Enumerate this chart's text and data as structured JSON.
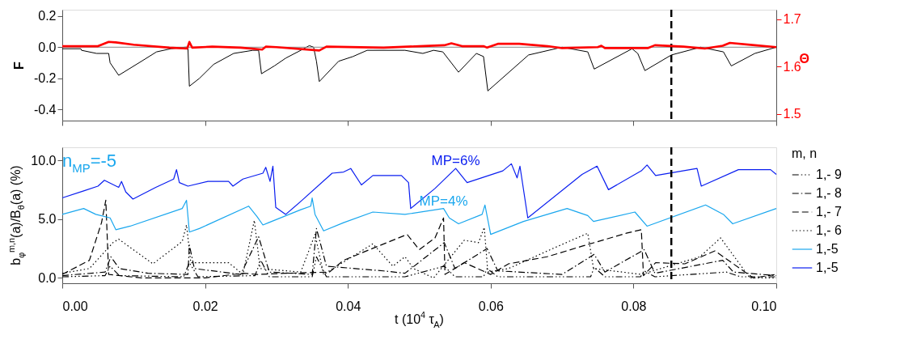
{
  "chart_data": [
    {
      "type": "line",
      "ylabel": "F",
      "y2label": "Θ",
      "tick_labels": "y",
      "grid": false,
      "legend": false,
      "xlim": [
        0,
        0.1
      ],
      "xticks": [
        {
          "value": 0,
          "label": null
        },
        {
          "value": 0.02,
          "label": null
        },
        {
          "value": 0.04,
          "label": null
        },
        {
          "value": 0.06,
          "label": null
        },
        {
          "value": 0.08,
          "label": null
        },
        {
          "value": 0.1,
          "label": null
        }
      ],
      "ylim": [
        -0.47,
        0.24
      ],
      "yticks": [
        {
          "value": 0.2,
          "label": "0.2"
        },
        {
          "value": 0,
          "label": "0.0"
        },
        {
          "value": -0.2,
          "label": "-0.2"
        },
        {
          "value": -0.4,
          "label": "-0.4"
        }
      ],
      "y2lim": [
        1.486,
        1.72
      ],
      "y2ticks": [
        1.5,
        1.6,
        1.7
      ],
      "ref_lines": [
        {
          "axis": "y",
          "value": 0,
          "color": "#888888",
          "line_style": "solid"
        },
        {
          "axis": "x",
          "value": 0.0853,
          "color": "#000000",
          "line_style": "dashed"
        }
      ],
      "series": [
        {
          "color": "#000000",
          "axis": "y",
          "line_style": "solid",
          "x": [
            0,
            0.0026,
            0.0027,
            0.0048,
            0.0065,
            0.0067,
            0.0079,
            0.0111,
            0.0132,
            0.0152,
            0.0172,
            0.0176,
            0.0178,
            0.0192,
            0.0212,
            0.024,
            0.0267,
            0.0275,
            0.0279,
            0.0297,
            0.0313,
            0.0334,
            0.0346,
            0.0352,
            0.0356,
            0.036,
            0.0387,
            0.0407,
            0.0427,
            0.048,
            0.0505,
            0.052,
            0.0533,
            0.0555,
            0.058,
            0.059,
            0.0596,
            0.0653,
            0.07,
            0.0736,
            0.0745,
            0.0798,
            0.0806,
            0.0816,
            0.0853,
            0.0894,
            0.0926,
            0.0937,
            0.097,
            0.1
          ],
          "values": [
            -0.01,
            -0.01,
            -0.02,
            -0.04,
            -0.04,
            -0.1,
            -0.18,
            -0.09,
            -0.03,
            -0.01,
            0.0,
            0.0,
            -0.25,
            -0.2,
            -0.11,
            -0.04,
            -0.02,
            -0.02,
            -0.17,
            -0.12,
            -0.07,
            -0.02,
            0.01,
            0.0,
            -0.09,
            -0.22,
            -0.09,
            -0.06,
            -0.02,
            -0.02,
            -0.04,
            -0.02,
            -0.03,
            -0.16,
            -0.04,
            -0.06,
            -0.28,
            -0.05,
            0.0,
            -0.03,
            -0.14,
            -0.01,
            -0.04,
            -0.15,
            -0.05,
            0.0,
            -0.03,
            -0.12,
            -0.04,
            0.0
          ]
        },
        {
          "color": "#ff0000",
          "axis": "y2",
          "line_style": "solid",
          "x": [
            0,
            0.005,
            0.0065,
            0.0075,
            0.01,
            0.015,
            0.0175,
            0.0178,
            0.0182,
            0.021,
            0.025,
            0.028,
            0.0285,
            0.03,
            0.036,
            0.037,
            0.045,
            0.05,
            0.0535,
            0.0545,
            0.056,
            0.059,
            0.0595,
            0.061,
            0.064,
            0.068,
            0.07,
            0.075,
            0.0755,
            0.076,
            0.082,
            0.083,
            0.087,
            0.09,
            0.0925,
            0.0935,
            0.097,
            0.1
          ],
          "values": [
            1.643,
            1.643,
            1.652,
            1.651,
            1.646,
            1.64,
            1.638,
            1.652,
            1.64,
            1.642,
            1.64,
            1.636,
            1.642,
            1.641,
            1.634,
            1.642,
            1.64,
            1.643,
            1.645,
            1.649,
            1.643,
            1.643,
            1.64,
            1.648,
            1.648,
            1.643,
            1.639,
            1.641,
            1.644,
            1.639,
            1.639,
            1.645,
            1.642,
            1.638,
            1.644,
            1.65,
            1.645,
            1.641
          ]
        }
      ]
    },
    {
      "type": "line",
      "xlabel": "t (10$^{4}$ τ$_{A}$)",
      "ylabel": "b$_{φ}$$^{m,n}$(a)/B$_{θ}$(a) (%)",
      "legend_title": "m, n",
      "legend": "right",
      "grid": false,
      "xlim": [
        0,
        0.1
      ],
      "xticks": [
        {
          "value": 0,
          "label": "0.00"
        },
        {
          "value": 0.02,
          "label": "0.02"
        },
        {
          "value": 0.04,
          "label": "0.04"
        },
        {
          "value": 0.06,
          "label": "0.06"
        },
        {
          "value": 0.08,
          "label": "0.08"
        },
        {
          "value": 0.1,
          "label": "0.10"
        }
      ],
      "ylim": [
        -0.45,
        11.1
      ],
      "yticks": [
        {
          "value": 0,
          "label": "0.0"
        },
        {
          "value": 5,
          "label": "5.0"
        },
        {
          "value": 10,
          "label": "10.0"
        }
      ],
      "ref_lines": [
        {
          "axis": "x",
          "value": 0.0853,
          "color": "#000000",
          "line_style": "dashed"
        }
      ],
      "annotations": [
        "n$_{MP}$=-5",
        {
          "text": "MP=6%",
          "x": 0.0551,
          "y": 9.3
        },
        {
          "text": "MP=4%",
          "x": 0.0534,
          "y": 5.9
        }
      ],
      "series": [
        {
          "name": "1,- 9",
          "color": "#000000",
          "line_style": "dashdotdot",
          "x": [
            0,
            0.006,
            0.0067,
            0.008,
            0.017,
            0.0178,
            0.019,
            0.027,
            0.0278,
            0.029,
            0.035,
            0.0356,
            0.037,
            0.048,
            0.0535,
            0.055,
            0.059,
            0.0595,
            0.061,
            0.074,
            0.0745,
            0.076,
            0.081,
            0.0815,
            0.083,
            0.093,
            0.095,
            0.1
          ],
          "values": [
            0.1,
            0.2,
            1.0,
            0.2,
            0.1,
            1.3,
            0.1,
            0.2,
            1.5,
            0.1,
            0.1,
            1.8,
            0.1,
            0.1,
            1.0,
            0.1,
            0.1,
            0.8,
            0.1,
            0.1,
            0.9,
            0.1,
            0.1,
            0.6,
            0.1,
            0.5,
            0.1,
            0.1
          ]
        },
        {
          "name": "1,- 8",
          "color": "#000000",
          "line_style": "dashdot",
          "x": [
            0,
            0.006,
            0.0068,
            0.008,
            0.012,
            0.0176,
            0.0178,
            0.0185,
            0.025,
            0.0275,
            0.029,
            0.035,
            0.0356,
            0.037,
            0.045,
            0.048,
            0.0535,
            0.055,
            0.0595,
            0.061,
            0.07,
            0.0745,
            0.076,
            0.0815,
            0.083,
            0.0925,
            0.094,
            0.1
          ],
          "values": [
            0.2,
            0.5,
            1.8,
            0.8,
            0.4,
            0.3,
            2.8,
            0.8,
            0.3,
            3.5,
            0.5,
            0.3,
            4.2,
            1.0,
            0.6,
            0.4,
            3.0,
            0.8,
            2.5,
            0.6,
            0.3,
            2.0,
            0.5,
            2.4,
            0.4,
            1.5,
            0.5,
            0.2
          ]
        },
        {
          "name": "1,- 7",
          "color": "#000000",
          "line_style": "dashed",
          "x": [
            0,
            0.0038,
            0.0055,
            0.0061,
            0.0065,
            0.0111,
            0.02,
            0.0253,
            0.0273,
            0.0313,
            0.0374,
            0.0394,
            0.0406,
            0.0483,
            0.05,
            0.0522,
            0.0534,
            0.0536,
            0.0563,
            0.06,
            0.0625,
            0.0679,
            0.0728,
            0.079,
            0.0811,
            0.0814,
            0.0831,
            0.0872,
            0.0914,
            0.0968,
            0.1
          ],
          "values": [
            0.3,
            1.5,
            4.7,
            6.6,
            0.3,
            0.0,
            0.0,
            0.4,
            0.3,
            0.4,
            0.5,
            1.5,
            1.8,
            3.7,
            2.4,
            3.4,
            5.1,
            0.3,
            1.3,
            0.3,
            1.2,
            1.8,
            2.7,
            3.8,
            4.1,
            0.2,
            1.3,
            1.2,
            2.3,
            0.0,
            0.3
          ]
        },
        {
          "name": "1,- 6",
          "color": "#000000",
          "line_style": "dotted",
          "x": [
            0,
            0.0038,
            0.0071,
            0.0079,
            0.0127,
            0.0168,
            0.0174,
            0.018,
            0.0233,
            0.0253,
            0.0269,
            0.0277,
            0.0334,
            0.0354,
            0.0366,
            0.0435,
            0.0463,
            0.048,
            0.0492,
            0.052,
            0.0563,
            0.0583,
            0.0591,
            0.0596,
            0.0625,
            0.0687,
            0.0736,
            0.0744,
            0.0811,
            0.0893,
            0.0922,
            0.0963,
            0.1
          ],
          "values": [
            0.4,
            0.8,
            3.0,
            3.3,
            1.2,
            3.1,
            4.5,
            1.3,
            1.3,
            0.3,
            4.9,
            0.8,
            0.5,
            3.7,
            0.3,
            2.9,
            1.0,
            1.8,
            0.8,
            0.0,
            3.2,
            3.0,
            4.3,
            0.5,
            0.8,
            2.5,
            3.8,
            0.8,
            0.3,
            1.8,
            3.4,
            0.0,
            0.0
          ]
        },
        {
          "name": "1,-5",
          "color": "#1aa7ee",
          "line_style": "solid",
          "x": [
            0,
            0.003,
            0.0047,
            0.0067,
            0.0075,
            0.0095,
            0.0168,
            0.0174,
            0.0178,
            0.0192,
            0.0261,
            0.0273,
            0.0281,
            0.0289,
            0.0334,
            0.0348,
            0.035,
            0.0354,
            0.0366,
            0.0394,
            0.0435,
            0.048,
            0.0534,
            0.0542,
            0.0555,
            0.0588,
            0.0592,
            0.06,
            0.0646,
            0.0707,
            0.0736,
            0.0744,
            0.0802,
            0.0819,
            0.0901,
            0.0926,
            0.0939,
            0.1
          ],
          "values": [
            5.4,
            5.9,
            5.4,
            5.1,
            4.1,
            4.4,
            5.9,
            6.6,
            3.9,
            4.2,
            6.1,
            5.2,
            4.5,
            4.7,
            5.8,
            6.1,
            6.8,
            5.4,
            4.0,
            4.7,
            5.6,
            5.4,
            5.9,
            5.1,
            4.6,
            5.4,
            6.2,
            3.7,
            4.8,
            5.9,
            5.3,
            4.8,
            5.6,
            4.4,
            6.2,
            5.4,
            4.6,
            5.9
          ]
        },
        {
          "name": "1,-5",
          "color": "#0a1ef0",
          "line_style": "solid",
          "x": [
            0,
            0.003,
            0.005,
            0.0059,
            0.0079,
            0.0083,
            0.0089,
            0.0099,
            0.0131,
            0.0156,
            0.016,
            0.0164,
            0.0176,
            0.0204,
            0.0233,
            0.0239,
            0.0253,
            0.0281,
            0.0285,
            0.0291,
            0.0295,
            0.0299,
            0.0313,
            0.0334,
            0.0378,
            0.0394,
            0.0404,
            0.0419,
            0.0435,
            0.0475,
            0.0485,
            0.0488,
            0.0522,
            0.0551,
            0.0567,
            0.0617,
            0.0629,
            0.0637,
            0.0641,
            0.0652,
            0.0728,
            0.0749,
            0.0765,
            0.0811,
            0.0819,
            0.0831,
            0.0889,
            0.0895,
            0.0947,
            0.0992,
            0.1
          ],
          "values": [
            6.8,
            7.4,
            7.8,
            8.3,
            7.7,
            8.2,
            7.3,
            6.7,
            7.7,
            8.4,
            9.2,
            8.1,
            7.8,
            8.2,
            8.2,
            7.8,
            8.4,
            8.9,
            9.4,
            8.2,
            9.5,
            6.0,
            5.4,
            6.5,
            8.9,
            9.0,
            9.3,
            7.9,
            8.7,
            8.7,
            8.1,
            5.9,
            7.6,
            9.3,
            8.1,
            9.1,
            9.7,
            8.5,
            9.5,
            5.1,
            8.8,
            9.5,
            7.5,
            9.1,
            9.6,
            8.7,
            9.3,
            7.8,
            9.2,
            9.2,
            8.8
          ]
        }
      ]
    }
  ]
}
